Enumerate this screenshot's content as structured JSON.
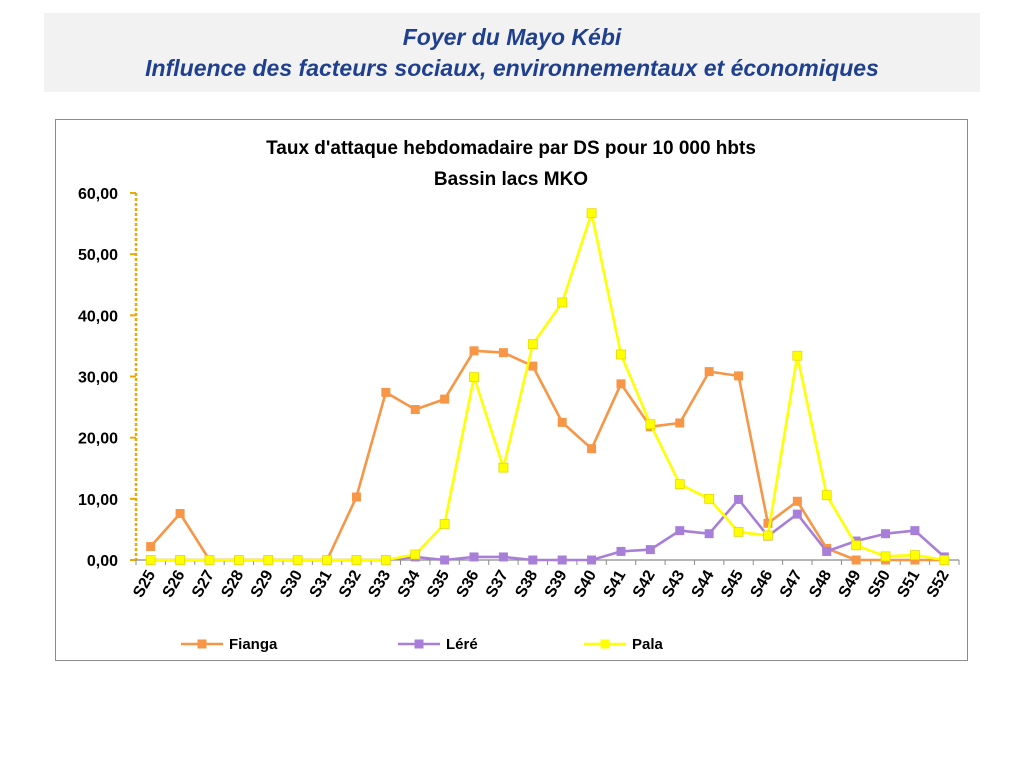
{
  "header": {
    "line1": "Foyer du Mayo Kébi",
    "line2": "Influence des facteurs sociaux, environnementaux et économiques"
  },
  "chart_data": {
    "type": "line",
    "title": "Taux d'attaque hebdomadaire par DS pour 10 000 hbts",
    "subtitle": "Bassin lacs MKO",
    "xlabel": "",
    "ylabel": "",
    "ylim": [
      0,
      60
    ],
    "yticks": [
      "0,00",
      "10,00",
      "20,00",
      "30,00",
      "40,00",
      "50,00",
      "60,00"
    ],
    "categories": [
      "S25",
      "S26",
      "S27",
      "S28",
      "S29",
      "S30",
      "S31",
      "S32",
      "S33",
      "S34",
      "S35",
      "S36",
      "S37",
      "S38",
      "S39",
      "S40",
      "S41",
      "S42",
      "S43",
      "S44",
      "S45",
      "S46",
      "S47",
      "S48",
      "S49",
      "S50",
      "S51",
      "S52"
    ],
    "legend_position": "bottom",
    "grid": false,
    "series": [
      {
        "name": "Fianga",
        "color": "#f79646",
        "values": [
          2.2,
          7.6,
          0,
          0,
          0,
          0,
          0,
          10.3,
          27.4,
          24.6,
          26.3,
          34.2,
          33.9,
          31.7,
          22.5,
          18.2,
          28.8,
          21.8,
          22.4,
          30.8,
          30.1,
          6.0,
          9.6,
          1.9,
          0,
          0,
          0,
          0
        ]
      },
      {
        "name": "Léré",
        "color": "#a87fd8",
        "values": [
          0,
          0,
          0,
          0,
          0,
          0,
          0,
          0,
          0,
          0.5,
          0,
          0.5,
          0.5,
          0,
          0,
          0,
          1.4,
          1.7,
          4.8,
          4.3,
          9.9,
          3.9,
          7.5,
          1.4,
          3.1,
          4.3,
          4.8,
          0.5
        ]
      },
      {
        "name": "Pala",
        "color": "#ffff00",
        "values": [
          0,
          0,
          0,
          0,
          0,
          0,
          0,
          0,
          0,
          0.9,
          5.9,
          29.9,
          15.1,
          35.3,
          42.1,
          56.7,
          33.6,
          22.2,
          12.4,
          10.0,
          4.6,
          4.0,
          33.4,
          10.6,
          2.4,
          0.6,
          0.8,
          0
        ]
      }
    ]
  }
}
